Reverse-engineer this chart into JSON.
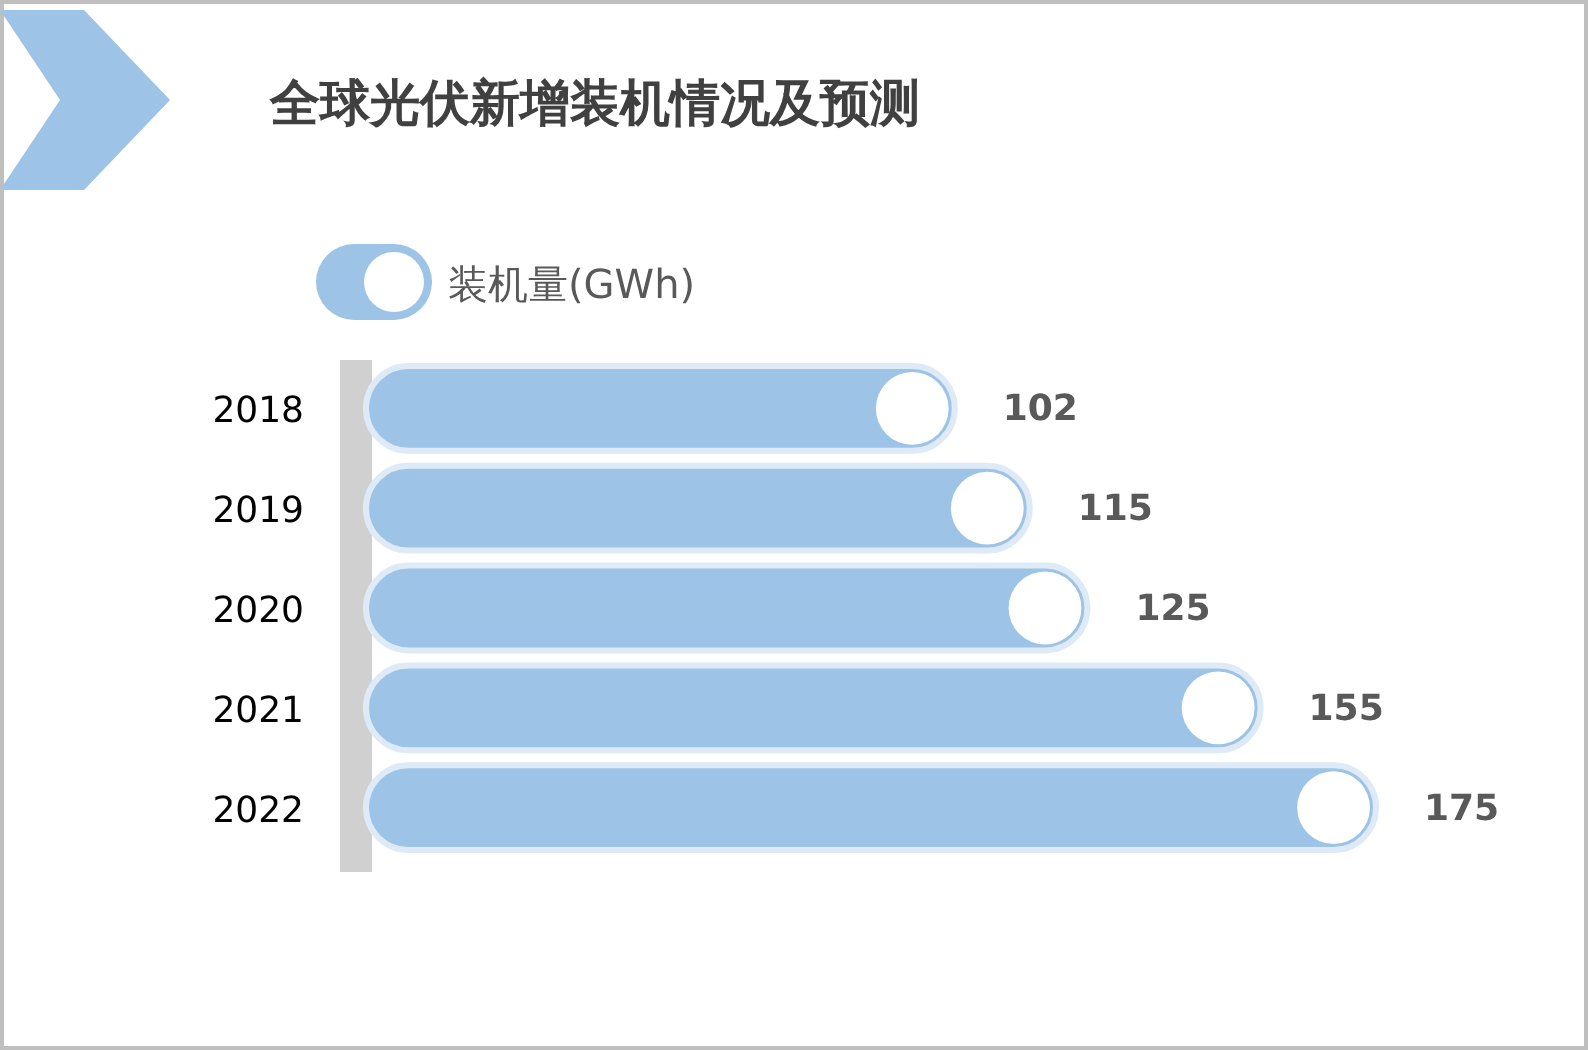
{
  "chart_data": {
    "type": "bar",
    "orientation": "horizontal",
    "title": "全球光伏新增装机情况及预测",
    "categories": [
      "2018",
      "2019",
      "2020",
      "2021",
      "2022"
    ],
    "series": [
      {
        "name": "装机量(GWh)",
        "color": "#9dc3e6",
        "values": [
          102,
          115,
          125,
          155,
          175
        ]
      }
    ],
    "tick_labels": "y",
    "data_labels": true,
    "legend": "top left"
  }
}
